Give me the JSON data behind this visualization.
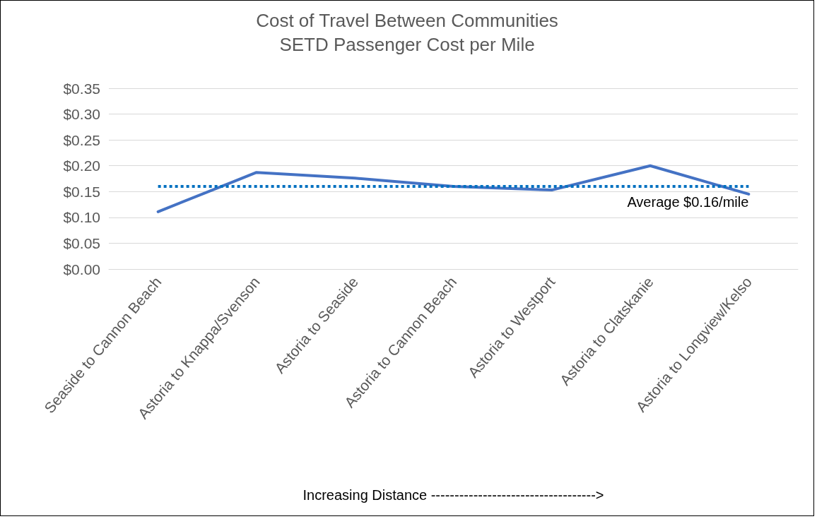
{
  "chart_data": {
    "type": "line",
    "title": "Cost of Travel Between Communities",
    "subtitle": "SETD Passenger Cost per Mile",
    "xlabel": "Increasing Distance ----------------------------------->",
    "categories": [
      "Seaside to Cannon Beach",
      "Astoria to Knappa/Svenson",
      "Astoria to Seaside",
      "Astoria to Cannon Beach",
      "Astoria to Westport",
      "Astoria to Clatskanie",
      "Astoria to Longview/Kelso"
    ],
    "series": [
      {
        "color": "#4472c4",
        "values": [
          0.111,
          0.187,
          0.176,
          0.16,
          0.153,
          0.2,
          0.145
        ]
      }
    ],
    "ylim": [
      0,
      0.35
    ],
    "yticks": [
      {
        "value": 0,
        "label": "$0.00"
      },
      {
        "value": 0.05,
        "label": "$0.05"
      },
      {
        "value": 0.1,
        "label": "$0.10"
      },
      {
        "value": 0.15,
        "label": "$0.15"
      },
      {
        "value": 0.2,
        "label": "$0.20"
      },
      {
        "value": 0.25,
        "label": "$0.25"
      },
      {
        "value": 0.3,
        "label": "$0.30"
      },
      {
        "value": 0.35,
        "label": "$0.35"
      }
    ],
    "ref_lines": [
      {
        "axis": "y",
        "value": 0.16,
        "label": "Average $0.16/mile",
        "color": "#0070c0",
        "line_style": "dotted"
      }
    ],
    "grid": "y",
    "marker": "none",
    "line_style": "solid"
  }
}
